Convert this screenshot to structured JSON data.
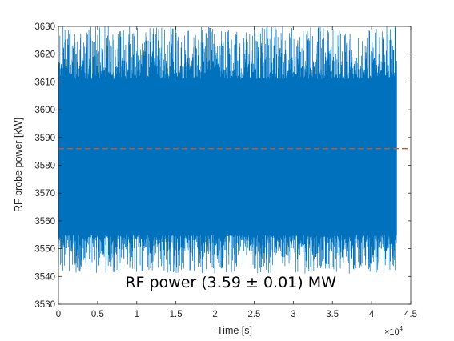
{
  "chart_data": {
    "type": "line",
    "xlabel": "Time [s]",
    "ylabel": "RF probe power [kW]",
    "xlim": [
      0,
      45000
    ],
    "ylim": [
      3530,
      3630
    ],
    "x_ticks": [
      0,
      5000,
      10000,
      15000,
      20000,
      25000,
      30000,
      35000,
      40000,
      45000
    ],
    "x_tick_labels": [
      "0",
      "0.5",
      "1",
      "1.5",
      "2",
      "2.5",
      "3",
      "3.5",
      "4",
      "4.5"
    ],
    "x_exponent_label": "×10",
    "x_exponent_power": "4",
    "y_ticks": [
      3530,
      3540,
      3550,
      3560,
      3570,
      3580,
      3590,
      3600,
      3610,
      3620,
      3630
    ],
    "y_tick_labels": [
      "3530",
      "3540",
      "3550",
      "3560",
      "3570",
      "3580",
      "3590",
      "3600",
      "3610",
      "3620",
      "3630"
    ],
    "grid": false,
    "box": true,
    "series": [
      {
        "x_range": [
          0,
          43200
        ],
        "mean": 3586,
        "band_low": 3555,
        "band_high": 3611,
        "min": 3541,
        "max": 3630,
        "color": "#0072BD"
      }
    ],
    "reference_line": {
      "y": 3586,
      "style": "dashed",
      "color": "#D95319"
    },
    "annotation": {
      "text": "RF power (3.59 ± 0.01) MW",
      "x": 22000,
      "y": 3536
    }
  }
}
